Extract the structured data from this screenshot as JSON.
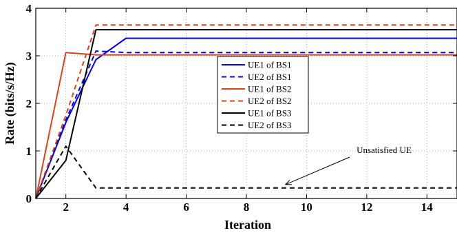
{
  "chart_data": {
    "type": "line",
    "xlabel": "Iteration",
    "ylabel": "Rate (bits/s/Hz)",
    "xlim": [
      1,
      15
    ],
    "ylim": [
      0,
      4
    ],
    "xticks": [
      2,
      4,
      6,
      8,
      10,
      12,
      14
    ],
    "yticks": [
      0,
      1,
      2,
      3,
      4
    ],
    "grid": true,
    "legend_position": "center-right",
    "series": [
      {
        "name": "UE1 of BS1",
        "color": "#0000ff",
        "dash": "solid",
        "points": [
          [
            1,
            0
          ],
          [
            2,
            1.6
          ],
          [
            3,
            2.92
          ],
          [
            4,
            3.37
          ],
          [
            15,
            3.37
          ]
        ]
      },
      {
        "name": "UE2 of BS1",
        "color": "#0000ff",
        "dash": "dashed",
        "points": [
          [
            1,
            0
          ],
          [
            2,
            1.65
          ],
          [
            3,
            3.1
          ],
          [
            4,
            3.07
          ],
          [
            15,
            3.07
          ]
        ]
      },
      {
        "name": "UE1 of BS2",
        "color": "#d9441a",
        "dash": "solid",
        "points": [
          [
            1,
            0
          ],
          [
            2,
            3.07
          ],
          [
            3,
            3.02
          ],
          [
            15,
            3.02
          ]
        ]
      },
      {
        "name": "UE2 of BS2",
        "color": "#d9441a",
        "dash": "dashed",
        "points": [
          [
            1,
            0
          ],
          [
            2,
            1.75
          ],
          [
            3,
            3.65
          ],
          [
            15,
            3.65
          ]
        ]
      },
      {
        "name": "UE1 of BS3",
        "color": "#000000",
        "dash": "solid",
        "points": [
          [
            1,
            0
          ],
          [
            2,
            0.8
          ],
          [
            3,
            3.55
          ],
          [
            15,
            3.55
          ]
        ]
      },
      {
        "name": "UE2 of BS3",
        "color": "#000000",
        "dash": "dashed",
        "points": [
          [
            1,
            0
          ],
          [
            2,
            1.1
          ],
          [
            3,
            0.22
          ],
          [
            15,
            0.22
          ]
        ]
      }
    ],
    "annotations": [
      {
        "text": "Unsatisfied UE",
        "point_to": [
          9.3,
          0.22
        ]
      }
    ]
  }
}
